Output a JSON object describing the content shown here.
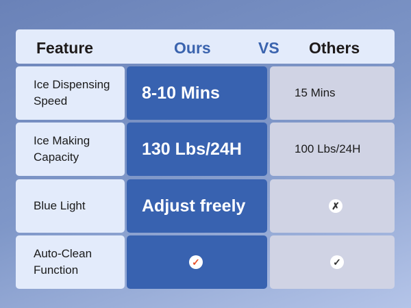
{
  "header": {
    "feature": "Feature",
    "ours": "Ours",
    "vs": "VS",
    "others": "Others"
  },
  "colors": {
    "accent": "#3862b0",
    "check_ours": "#e8502a",
    "icon_dark": "#333333"
  },
  "rows": [
    {
      "feature": "Ice Dispensing Speed",
      "ours": "8-10 Mins",
      "others": "15 Mins"
    },
    {
      "feature": "Ice Making Capacity",
      "ours": "130 Lbs/24H",
      "others": "100 Lbs/24H"
    },
    {
      "feature": "Blue Light",
      "ours": "Adjust freely",
      "others_icon": "x-icon"
    },
    {
      "feature": "Auto-Clean Function",
      "ours_icon": "check-icon",
      "others_icon": "check-icon"
    }
  ]
}
